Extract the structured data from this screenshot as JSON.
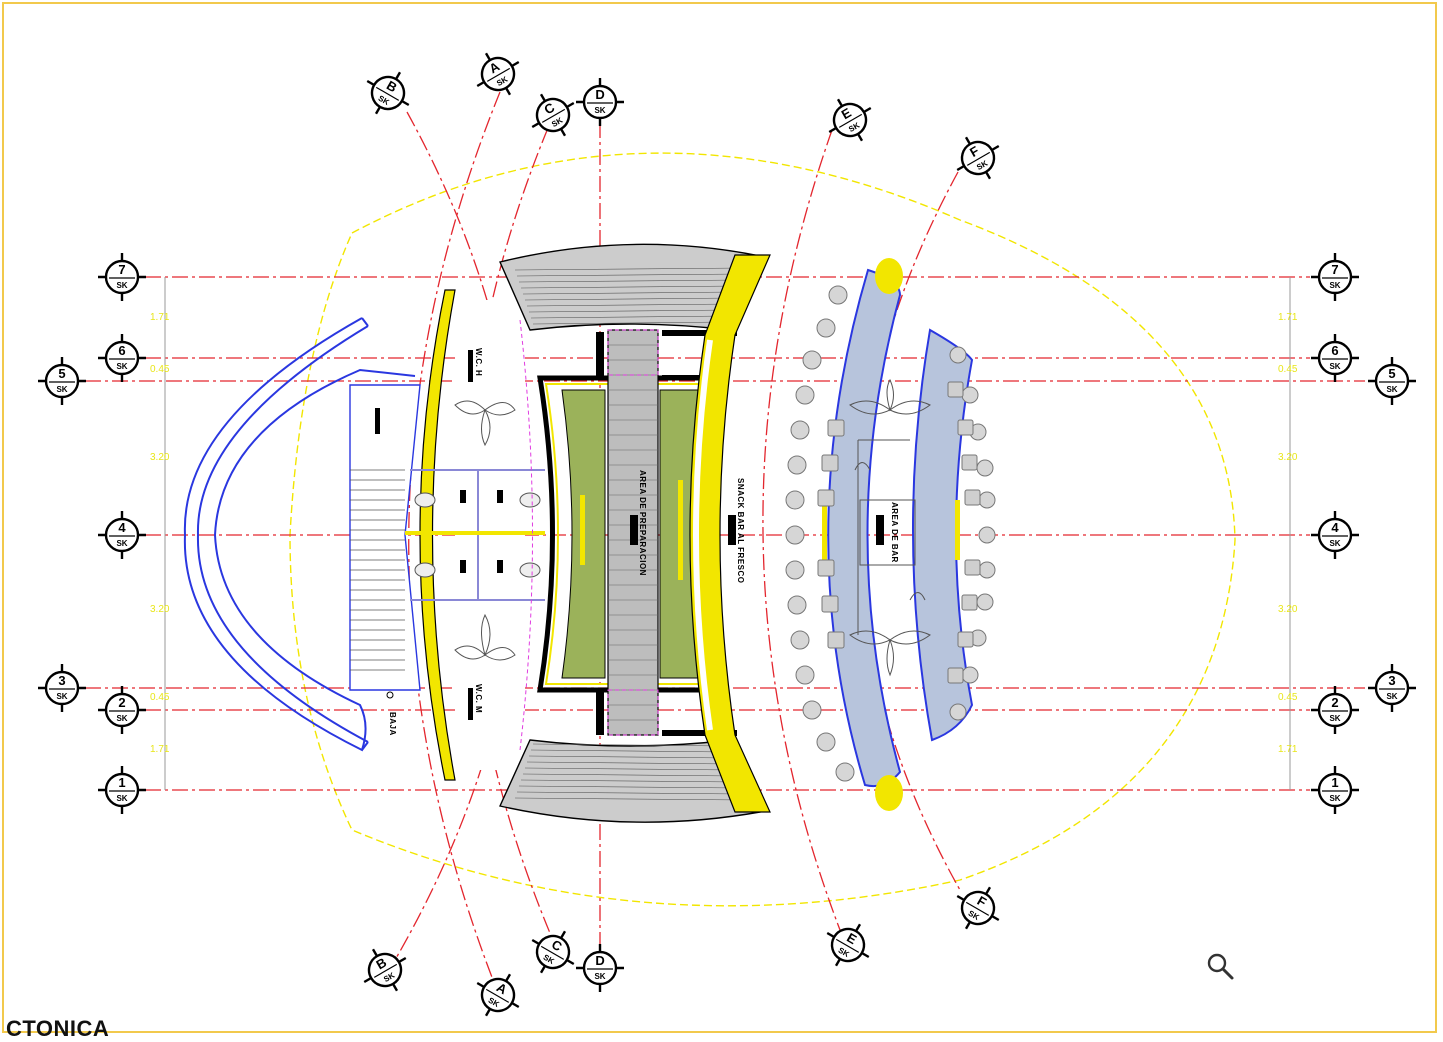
{
  "caption": "CTONICA",
  "grid_bubbles": {
    "sheet": "SK",
    "rows": [
      "1",
      "2",
      "3",
      "4",
      "5",
      "6",
      "7"
    ],
    "cols": [
      "A",
      "B",
      "C",
      "D",
      "E",
      "F"
    ]
  },
  "dimensions": [
    "1.71",
    "0.45",
    "3.20",
    "3.20",
    "0.45",
    "1.71"
  ],
  "rooms": {
    "wc_top": "W.C. H",
    "wc_bottom": "W.C. M",
    "preparation": "AREA DE PREPARACION",
    "snack_bar": "SNACK BAR AL FRESCO",
    "bar": "AREA DE BAR",
    "stair": "BAJA"
  },
  "icons": {
    "zoom": "magnifier-icon"
  },
  "colors": {
    "grid": "#e3262e",
    "outline": "#f2e600",
    "glass": "#2a37e0",
    "garden": "#9bb25a",
    "counter": "#b7c4dc"
  }
}
